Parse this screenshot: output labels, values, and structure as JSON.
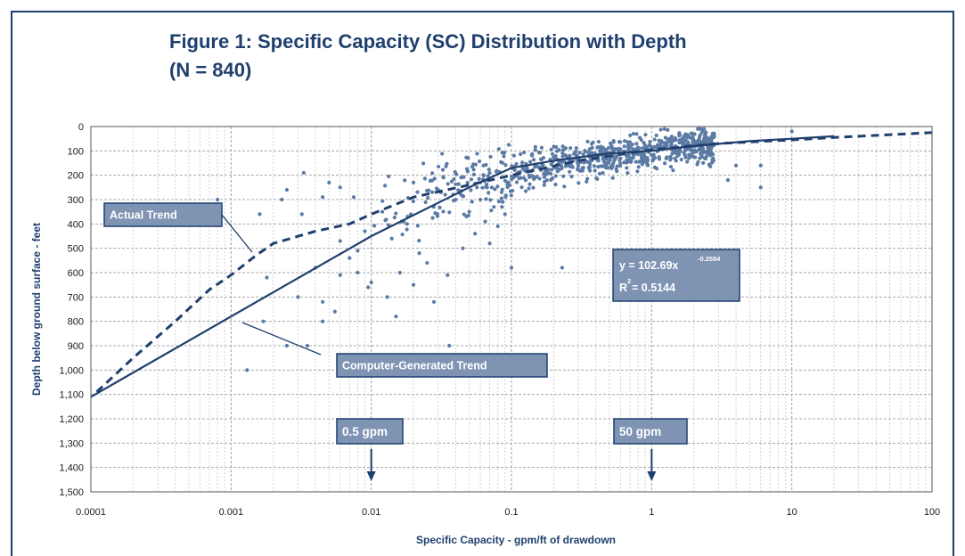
{
  "title_line1": "Figure 1: Specific Capacity (SC) Distribution with Depth",
  "title_line2": "(N = 840)",
  "chart_data": {
    "type": "scatter",
    "xlabel": "Specific Capacity - gpm/ft of drawdown",
    "ylabel": "Depth below ground surface - feet",
    "x_scale": "log",
    "xlim": [
      0.0001,
      100
    ],
    "ylim": [
      0,
      1500
    ],
    "y_inverted": true,
    "grid": true,
    "x_ticks": [
      0.0001,
      0.001,
      0.01,
      0.1,
      1,
      10,
      100
    ],
    "x_tick_labels": [
      "0.0001",
      "0.001",
      "0.01",
      "0.1",
      "1",
      "10",
      "100"
    ],
    "y_ticks": [
      0,
      100,
      200,
      300,
      400,
      500,
      600,
      700,
      800,
      900,
      1000,
      1100,
      1200,
      1300,
      1400,
      1500
    ],
    "y_tick_labels": [
      "0",
      "100",
      "200",
      "300",
      "400",
      "500",
      "600",
      "700",
      "800",
      "900",
      "1,000",
      "1,100",
      "1,200",
      "1,300",
      "1,400",
      "1,500"
    ],
    "colors": {
      "points": "#5b7aa4",
      "lines": "#1f3f6e",
      "box_fill": "#7f93b3",
      "box_border": "#1f3f6e"
    },
    "series": [
      {
        "type": "scatter",
        "points": [
          [
            0.0008,
            300
          ],
          [
            0.0016,
            360
          ],
          [
            0.0013,
            1000
          ],
          [
            0.0025,
            900
          ],
          [
            0.0035,
            900
          ],
          [
            0.0017,
            800
          ],
          [
            0.0018,
            620
          ],
          [
            0.0023,
            300
          ],
          [
            0.003,
            700
          ],
          [
            0.0033,
            190
          ],
          [
            0.004,
            580
          ],
          [
            0.0045,
            720
          ],
          [
            0.0045,
            800
          ],
          [
            0.0055,
            760
          ],
          [
            0.006,
            610
          ],
          [
            0.0025,
            260
          ],
          [
            0.0032,
            360
          ],
          [
            0.0045,
            290
          ],
          [
            0.005,
            230
          ],
          [
            0.006,
            250
          ],
          [
            0.007,
            540
          ],
          [
            0.0075,
            290
          ],
          [
            0.008,
            600
          ],
          [
            0.009,
            430
          ],
          [
            0.0095,
            660
          ],
          [
            0.015,
            780
          ],
          [
            0.028,
            720
          ],
          [
            0.036,
            900
          ],
          [
            0.1,
            580
          ],
          [
            0.23,
            580
          ],
          [
            0.05,
            350
          ],
          [
            0.06,
            300
          ],
          [
            0.07,
            480
          ],
          [
            0.08,
            410
          ],
          [
            0.09,
            360
          ],
          [
            3.5,
            220
          ],
          [
            4,
            160
          ],
          [
            6,
            160
          ],
          [
            6,
            250
          ],
          [
            10,
            20
          ],
          [
            0.02,
            230
          ],
          [
            0.03,
            260
          ],
          [
            0.04,
            300
          ],
          [
            0.012,
            350
          ],
          [
            0.018,
            400
          ],
          [
            0.014,
            460
          ],
          [
            0.022,
            520
          ],
          [
            0.016,
            600
          ],
          [
            0.008,
            510
          ],
          [
            0.006,
            470
          ],
          [
            0.01,
            640
          ],
          [
            0.013,
            700
          ],
          [
            0.02,
            650
          ],
          [
            0.025,
            560
          ],
          [
            0.035,
            610
          ],
          [
            0.045,
            500
          ],
          [
            0.055,
            440
          ],
          [
            0.065,
            390
          ],
          [
            0.075,
            330
          ],
          [
            0.085,
            270
          ]
        ],
        "cloud": {
          "count": 780,
          "x_log_range": [
            -2.0,
            0.45
          ],
          "note": "dense band following the trend"
        }
      },
      {
        "name": "Actual Trend",
        "type": "line",
        "style": "dashed",
        "x": [
          0.00011,
          0.0002,
          0.0004,
          0.0007,
          0.001,
          0.0015,
          0.002,
          0.004,
          0.007,
          0.01,
          0.02,
          0.05,
          0.1,
          0.3,
          1,
          3,
          10,
          20,
          100
        ],
        "y": [
          1090,
          950,
          800,
          670,
          610,
          530,
          480,
          430,
          400,
          360,
          290,
          240,
          200,
          140,
          95,
          70,
          55,
          45,
          25
        ]
      },
      {
        "name": "Computer-Generated Trend",
        "type": "line",
        "style": "solid",
        "x": [
          0.0001,
          0.001,
          0.01,
          0.05,
          0.1,
          0.2,
          0.5,
          1,
          2,
          5,
          10,
          20
        ],
        "y": [
          1110,
          780,
          450,
          250,
          170,
          140,
          110,
          100,
          80,
          60,
          50,
          40
        ]
      }
    ],
    "annotations": [
      {
        "text": "Actual Trend",
        "x": 0.00015,
        "y": 320
      },
      {
        "text": "Computer-Generated Trend",
        "x": 0.005,
        "y": 980
      },
      {
        "text": "0.5 gpm",
        "x": 0.01,
        "y": 1250,
        "arrow_to_x": 0.01
      },
      {
        "text": "50 gpm",
        "x": 1,
        "y": 1250,
        "arrow_to_x": 1
      }
    ],
    "equation": {
      "line1_base": "y = 102.69x",
      "line1_exp": "-0.2584",
      "line2_base": "R",
      "line2_exp": "2",
      "line2_rest": " = 0.5144"
    }
  }
}
